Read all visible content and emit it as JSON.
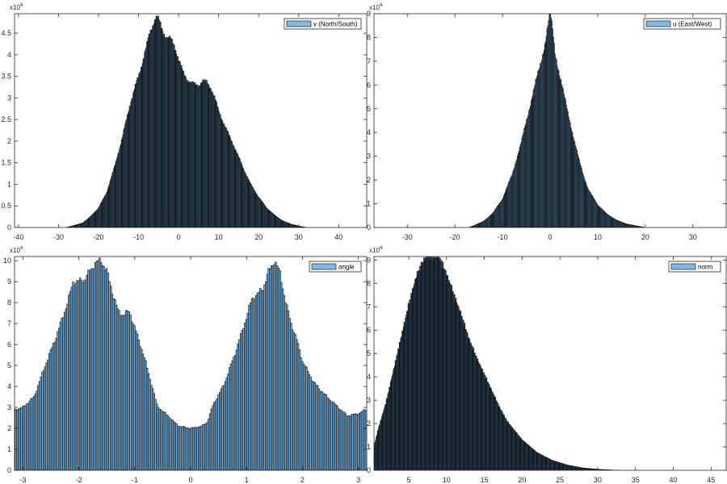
{
  "figure": {
    "background": "#ffffff",
    "bar_face_color": "#7fb9e6",
    "bar_edge_color": "#000000",
    "axes_color": "#262626"
  },
  "chart_data": [
    {
      "type": "bar",
      "subtype": "histogram",
      "legend": "v (North/South)",
      "legend_location": "top-right",
      "exponent_label": "x10^4",
      "y_scale": 10000,
      "xlim": [
        -41,
        47
      ],
      "ylim": [
        0,
        4.95
      ],
      "xticks": [
        -40,
        -30,
        -20,
        -10,
        0,
        10,
        20,
        30,
        40
      ],
      "xtick_labels": [
        "-40",
        "-30",
        "-20",
        "-10",
        "0",
        "10",
        "20",
        "30",
        "40"
      ],
      "yticks": [
        0,
        0.5,
        1,
        1.5,
        2,
        2.5,
        3,
        3.5,
        4,
        4.5
      ],
      "ytick_labels": [
        "0",
        "0.5",
        "1",
        "1.5",
        "2",
        "2.5",
        "3",
        "3.5",
        "4",
        "4.5"
      ],
      "bin_width": 0.18,
      "profile": [
        [
          -28,
          0
        ],
        [
          -26,
          0.05
        ],
        [
          -24,
          0.1
        ],
        [
          -22,
          0.25
        ],
        [
          -20,
          0.45
        ],
        [
          -18,
          0.8
        ],
        [
          -16,
          1.4
        ],
        [
          -14,
          2.1
        ],
        [
          -12,
          2.9
        ],
        [
          -10,
          3.5
        ],
        [
          -8,
          4.2
        ],
        [
          -7,
          4.55
        ],
        [
          -6,
          4.82
        ],
        [
          -5.5,
          4.88
        ],
        [
          -5,
          4.8
        ],
        [
          -4,
          4.55
        ],
        [
          -3,
          4.4
        ],
        [
          -2,
          4.35
        ],
        [
          -1,
          4.2
        ],
        [
          0,
          3.9
        ],
        [
          1,
          3.6
        ],
        [
          2,
          3.45
        ],
        [
          3,
          3.35
        ],
        [
          4,
          3.3
        ],
        [
          5,
          3.3
        ],
        [
          6,
          3.38
        ],
        [
          7,
          3.36
        ],
        [
          8,
          3.25
        ],
        [
          9,
          3.0
        ],
        [
          10,
          2.7
        ],
        [
          12,
          2.25
        ],
        [
          14,
          1.85
        ],
        [
          16,
          1.4
        ],
        [
          18,
          1.0
        ],
        [
          20,
          0.7
        ],
        [
          22,
          0.45
        ],
        [
          24,
          0.28
        ],
        [
          26,
          0.15
        ],
        [
          28,
          0.08
        ],
        [
          30,
          0.03
        ],
        [
          32,
          0
        ]
      ]
    },
    {
      "type": "bar",
      "subtype": "histogram",
      "legend": "u (East/West)",
      "legend_location": "top-right",
      "exponent_label": "x10^4",
      "y_scale": 10000,
      "xlim": [
        -37,
        37
      ],
      "ylim": [
        0,
        9.0
      ],
      "xticks": [
        -30,
        -20,
        -10,
        0,
        10,
        20,
        30
      ],
      "xtick_labels": [
        "-30",
        "-20",
        "-10",
        "0",
        "10",
        "20",
        "30"
      ],
      "yticks": [
        0,
        1,
        2,
        3,
        4,
        5,
        6,
        7,
        8,
        9
      ],
      "ytick_labels": [
        "0",
        "1",
        "2",
        "3",
        "4",
        "5",
        "6",
        "7",
        "8",
        "9"
      ],
      "bin_width": 0.16,
      "profile": [
        [
          -17,
          0
        ],
        [
          -16,
          0.08
        ],
        [
          -14,
          0.25
        ],
        [
          -12,
          0.6
        ],
        [
          -10,
          1.2
        ],
        [
          -8,
          2.2
        ],
        [
          -6,
          3.6
        ],
        [
          -4,
          5.3
        ],
        [
          -3,
          6.1
        ],
        [
          -2,
          6.9
        ],
        [
          -1,
          7.8
        ],
        [
          -0.5,
          8.4
        ],
        [
          0,
          9.0
        ],
        [
          0.5,
          8.4
        ],
        [
          1,
          7.4
        ],
        [
          2,
          6.4
        ],
        [
          3,
          5.5
        ],
        [
          4,
          4.6
        ],
        [
          5,
          3.7
        ],
        [
          6,
          2.9
        ],
        [
          7,
          2.2
        ],
        [
          8,
          1.6
        ],
        [
          10,
          0.95
        ],
        [
          12,
          0.55
        ],
        [
          14,
          0.3
        ],
        [
          16,
          0.15
        ],
        [
          18,
          0.07
        ],
        [
          20,
          0
        ]
      ]
    },
    {
      "type": "bar",
      "subtype": "histogram",
      "legend": "angle",
      "legend_location": "top-right",
      "exponent_label": "x10^4",
      "y_scale": 10000,
      "xlim": [
        -3.15,
        3.15
      ],
      "ylim": [
        0,
        10.2
      ],
      "xticks": [
        -3,
        -2,
        -1,
        0,
        1,
        2,
        3
      ],
      "xtick_labels": [
        "-3",
        "-2",
        "-1",
        "0",
        "1",
        "2",
        "3"
      ],
      "yticks": [
        0,
        1,
        2,
        3,
        4,
        5,
        6,
        7,
        8,
        9,
        10
      ],
      "ytick_labels": [
        "0",
        "1",
        "2",
        "3",
        "4",
        "5",
        "6",
        "7",
        "8",
        "9",
        "10"
      ],
      "bin_width": 0.025,
      "profile": [
        [
          -3.14,
          2.9
        ],
        [
          -3.0,
          3.0
        ],
        [
          -2.8,
          3.5
        ],
        [
          -2.6,
          5.0
        ],
        [
          -2.4,
          6.4
        ],
        [
          -2.2,
          8.0
        ],
        [
          -2.1,
          9.0
        ],
        [
          -2.0,
          9.0
        ],
        [
          -1.9,
          9.1
        ],
        [
          -1.8,
          9.5
        ],
        [
          -1.7,
          9.9
        ],
        [
          -1.6,
          10.0
        ],
        [
          -1.5,
          9.5
        ],
        [
          -1.4,
          8.5
        ],
        [
          -1.3,
          7.6
        ],
        [
          -1.2,
          7.4
        ],
        [
          -1.1,
          7.6
        ],
        [
          -1.0,
          6.8
        ],
        [
          -0.9,
          6.0
        ],
        [
          -0.8,
          5.1
        ],
        [
          -0.7,
          4.1
        ],
        [
          -0.6,
          3.1
        ],
        [
          -0.5,
          2.8
        ],
        [
          -0.4,
          2.6
        ],
        [
          -0.3,
          2.3
        ],
        [
          -0.2,
          2.1
        ],
        [
          0.0,
          2.0
        ],
        [
          0.2,
          2.1
        ],
        [
          0.3,
          2.3
        ],
        [
          0.4,
          3.1
        ],
        [
          0.6,
          4.1
        ],
        [
          0.8,
          5.6
        ],
        [
          1.0,
          7.3
        ],
        [
          1.1,
          8.2
        ],
        [
          1.2,
          8.4
        ],
        [
          1.3,
          8.7
        ],
        [
          1.4,
          9.5
        ],
        [
          1.5,
          10.0
        ],
        [
          1.6,
          9.4
        ],
        [
          1.7,
          8.0
        ],
        [
          1.8,
          7.0
        ],
        [
          1.9,
          6.2
        ],
        [
          2.0,
          5.2
        ],
        [
          2.2,
          4.2
        ],
        [
          2.4,
          3.6
        ],
        [
          2.6,
          3.1
        ],
        [
          2.8,
          2.6
        ],
        [
          3.0,
          2.7
        ],
        [
          3.14,
          2.9
        ]
      ]
    },
    {
      "type": "bar",
      "subtype": "histogram",
      "legend": "norm",
      "legend_location": "top-right",
      "exponent_label": "x10^4",
      "y_scale": 10000,
      "xlim": [
        0.4,
        47
      ],
      "ylim": [
        0,
        9.15
      ],
      "xticks": [
        5,
        10,
        15,
        20,
        25,
        30,
        35,
        40,
        45
      ],
      "xtick_labels": [
        "5",
        "10",
        "15",
        "20",
        "25",
        "30",
        "35",
        "40",
        "45"
      ],
      "yticks": [
        0,
        1,
        2,
        3,
        4,
        5,
        6,
        7,
        8,
        9
      ],
      "ytick_labels": [
        "0",
        "1",
        "2",
        "3",
        "4",
        "5",
        "6",
        "7",
        "8",
        "9"
      ],
      "bin_width": 0.09,
      "profile": [
        [
          0.4,
          1.0
        ],
        [
          1,
          1.8
        ],
        [
          2,
          2.9
        ],
        [
          3,
          4.3
        ],
        [
          4,
          5.7
        ],
        [
          5,
          7.1
        ],
        [
          6,
          8.3
        ],
        [
          7,
          9.0
        ],
        [
          7.5,
          9.15
        ],
        [
          8.5,
          9.1
        ],
        [
          9,
          9.15
        ],
        [
          10,
          8.4
        ],
        [
          11,
          7.5
        ],
        [
          12,
          6.6
        ],
        [
          13,
          5.6
        ],
        [
          14,
          4.8
        ],
        [
          15,
          4.1
        ],
        [
          16,
          3.4
        ],
        [
          17,
          2.7
        ],
        [
          18,
          2.1
        ],
        [
          20,
          1.3
        ],
        [
          22,
          0.75
        ],
        [
          24,
          0.42
        ],
        [
          26,
          0.22
        ],
        [
          28,
          0.1
        ],
        [
          30,
          0.04
        ],
        [
          32,
          0.01
        ],
        [
          33,
          0
        ]
      ]
    }
  ]
}
